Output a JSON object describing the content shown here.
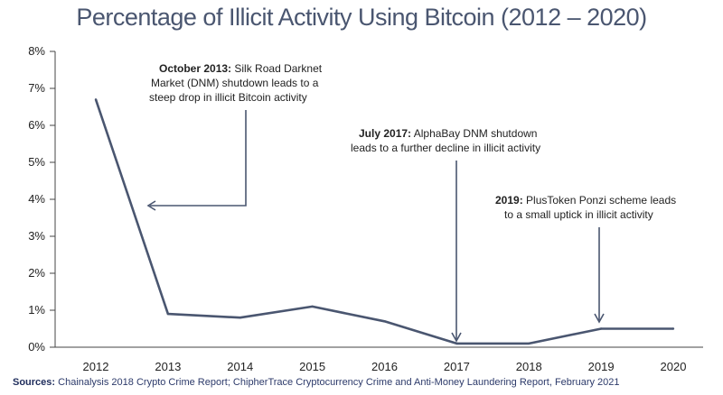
{
  "chart_data": {
    "type": "line",
    "title": "Percentage of Illicit Activity Using Bitcoin (2012 – 2020)",
    "x": [
      "2012",
      "2013",
      "2014",
      "2015",
      "2016",
      "2017",
      "2018",
      "2019",
      "2020"
    ],
    "values": [
      6.7,
      0.9,
      0.8,
      1.1,
      0.7,
      0.1,
      0.1,
      0.5,
      0.5
    ],
    "ylim": [
      0,
      8
    ],
    "y_ticks": [
      "0%",
      "1%",
      "2%",
      "3%",
      "4%",
      "5%",
      "6%",
      "7%",
      "8%"
    ],
    "grid": false,
    "line_color": "#4a5670",
    "annotations": [
      {
        "bold": "October 2013:",
        "lines": [
          " Silk Road Darknet",
          "Market (DNM) shutdown leads to a",
          "steep drop in illicit Bitcoin activity"
        ]
      },
      {
        "bold": "July 2017:",
        "lines": [
          " AlphaBay DNM shutdown",
          "leads to a further decline in illicit activity"
        ]
      },
      {
        "bold": "2019:",
        "lines": [
          " PlusToken Ponzi scheme leads",
          "to a small uptick in illicit activity"
        ]
      }
    ]
  },
  "sources": {
    "label": "Sources:",
    "text": " Chainalysis 2018 Crypto Crime Report; ChipherTrace Cryptocurrency Crime and Anti-Money Laundering Report, February 2021"
  }
}
